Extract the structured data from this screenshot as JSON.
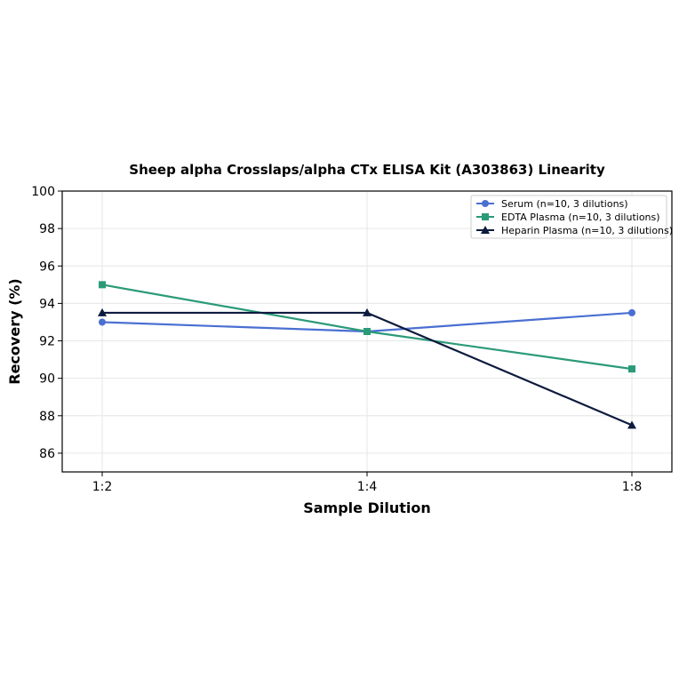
{
  "chart_data": {
    "type": "line",
    "title": "Sheep alpha Crosslaps/alpha CTx ELISA Kit (A303863) Linearity",
    "xlabel": "Sample Dilution",
    "ylabel": "Recovery (%)",
    "categories": [
      "1:2",
      "1:4",
      "1:8"
    ],
    "ylim": [
      85,
      100
    ],
    "yticks": [
      86,
      88,
      90,
      92,
      94,
      96,
      98,
      100
    ],
    "grid": true,
    "legend_position": "top-right",
    "series": [
      {
        "name": "Serum (n=10, 3 dilutions)",
        "values": [
          93.0,
          92.5,
          93.5
        ],
        "color": "#4a6fd1",
        "marker": "circle"
      },
      {
        "name": "EDTA Plasma (n=10, 3 dilutions)",
        "values": [
          95.0,
          92.5,
          90.5
        ],
        "color": "#2a9a78",
        "marker": "square"
      },
      {
        "name": "Heparin Plasma (n=10, 3 dilutions)",
        "values": [
          93.5,
          93.5,
          87.5
        ],
        "color": "#0d1b3e",
        "marker": "triangle"
      }
    ]
  }
}
